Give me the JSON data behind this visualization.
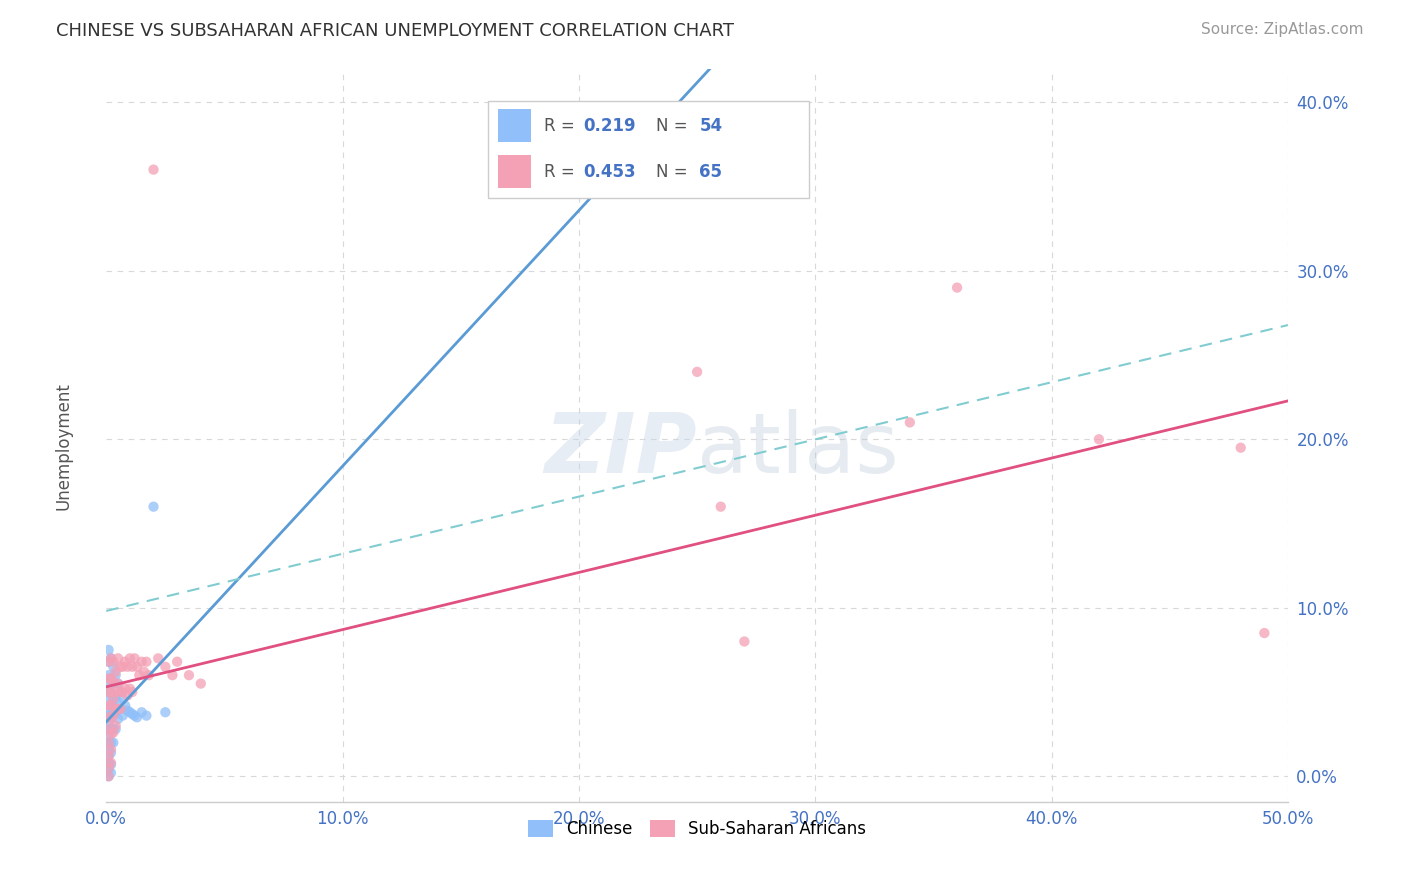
{
  "title": "CHINESE VS SUBSAHARAN AFRICAN UNEMPLOYMENT CORRELATION CHART",
  "source": "Source: ZipAtlas.com",
  "ylabel": "Unemployment",
  "xlim": [
    0.0,
    0.5
  ],
  "ylim": [
    -0.015,
    0.42
  ],
  "xticks": [
    0.0,
    0.1,
    0.2,
    0.3,
    0.4,
    0.5
  ],
  "yticks": [
    0.0,
    0.1,
    0.2,
    0.3,
    0.4
  ],
  "chinese_color": "#90bff9",
  "subsaharan_color": "#f4a0b5",
  "trend_chinese_color": "#5b9bd5",
  "trend_ss_solid_color": "#e05080",
  "trend_ss_dash_color": "#80ccd0",
  "chinese_R": 0.219,
  "chinese_N": 54,
  "subsaharan_R": 0.453,
  "subsaharan_N": 65,
  "background_color": "#ffffff",
  "grid_color": "#d8d8d8",
  "chinese_data": [
    [
      0.001,
      0.075
    ],
    [
      0.001,
      0.068
    ],
    [
      0.001,
      0.06
    ],
    [
      0.001,
      0.055
    ],
    [
      0.001,
      0.05
    ],
    [
      0.001,
      0.045
    ],
    [
      0.001,
      0.04
    ],
    [
      0.001,
      0.036
    ],
    [
      0.001,
      0.032
    ],
    [
      0.001,
      0.028
    ],
    [
      0.001,
      0.024
    ],
    [
      0.001,
      0.02
    ],
    [
      0.001,
      0.016
    ],
    [
      0.001,
      0.012
    ],
    [
      0.001,
      0.008
    ],
    [
      0.001,
      0.004
    ],
    [
      0.001,
      0.0
    ],
    [
      0.002,
      0.07
    ],
    [
      0.002,
      0.058
    ],
    [
      0.002,
      0.05
    ],
    [
      0.002,
      0.042
    ],
    [
      0.002,
      0.035
    ],
    [
      0.002,
      0.028
    ],
    [
      0.002,
      0.02
    ],
    [
      0.002,
      0.014
    ],
    [
      0.002,
      0.007
    ],
    [
      0.002,
      0.002
    ],
    [
      0.003,
      0.065
    ],
    [
      0.003,
      0.055
    ],
    [
      0.003,
      0.045
    ],
    [
      0.003,
      0.036
    ],
    [
      0.003,
      0.028
    ],
    [
      0.003,
      0.02
    ],
    [
      0.004,
      0.06
    ],
    [
      0.004,
      0.048
    ],
    [
      0.004,
      0.038
    ],
    [
      0.004,
      0.028
    ],
    [
      0.005,
      0.055
    ],
    [
      0.005,
      0.044
    ],
    [
      0.005,
      0.034
    ],
    [
      0.006,
      0.05
    ],
    [
      0.006,
      0.04
    ],
    [
      0.007,
      0.046
    ],
    [
      0.007,
      0.036
    ],
    [
      0.008,
      0.042
    ],
    [
      0.009,
      0.039
    ],
    [
      0.01,
      0.038
    ],
    [
      0.011,
      0.037
    ],
    [
      0.012,
      0.036
    ],
    [
      0.013,
      0.035
    ],
    [
      0.015,
      0.038
    ],
    [
      0.017,
      0.036
    ],
    [
      0.02,
      0.16
    ],
    [
      0.025,
      0.038
    ]
  ],
  "subsaharan_data": [
    [
      0.001,
      0.068
    ],
    [
      0.001,
      0.058
    ],
    [
      0.001,
      0.05
    ],
    [
      0.001,
      0.042
    ],
    [
      0.001,
      0.035
    ],
    [
      0.001,
      0.028
    ],
    [
      0.001,
      0.02
    ],
    [
      0.001,
      0.012
    ],
    [
      0.001,
      0.005
    ],
    [
      0.001,
      0.0
    ],
    [
      0.002,
      0.07
    ],
    [
      0.002,
      0.058
    ],
    [
      0.002,
      0.05
    ],
    [
      0.002,
      0.042
    ],
    [
      0.002,
      0.034
    ],
    [
      0.002,
      0.025
    ],
    [
      0.002,
      0.016
    ],
    [
      0.002,
      0.008
    ],
    [
      0.003,
      0.068
    ],
    [
      0.003,
      0.056
    ],
    [
      0.003,
      0.046
    ],
    [
      0.003,
      0.036
    ],
    [
      0.003,
      0.026
    ],
    [
      0.004,
      0.062
    ],
    [
      0.004,
      0.05
    ],
    [
      0.004,
      0.04
    ],
    [
      0.004,
      0.03
    ],
    [
      0.005,
      0.07
    ],
    [
      0.005,
      0.055
    ],
    [
      0.005,
      0.04
    ],
    [
      0.006,
      0.065
    ],
    [
      0.006,
      0.05
    ],
    [
      0.006,
      0.04
    ],
    [
      0.007,
      0.065
    ],
    [
      0.007,
      0.05
    ],
    [
      0.008,
      0.068
    ],
    [
      0.008,
      0.052
    ],
    [
      0.009,
      0.065
    ],
    [
      0.009,
      0.048
    ],
    [
      0.01,
      0.07
    ],
    [
      0.01,
      0.052
    ],
    [
      0.011,
      0.065
    ],
    [
      0.011,
      0.05
    ],
    [
      0.012,
      0.07
    ],
    [
      0.013,
      0.065
    ],
    [
      0.014,
      0.06
    ],
    [
      0.015,
      0.068
    ],
    [
      0.016,
      0.062
    ],
    [
      0.017,
      0.068
    ],
    [
      0.018,
      0.06
    ],
    [
      0.02,
      0.36
    ],
    [
      0.022,
      0.07
    ],
    [
      0.025,
      0.065
    ],
    [
      0.028,
      0.06
    ],
    [
      0.03,
      0.068
    ],
    [
      0.035,
      0.06
    ],
    [
      0.04,
      0.055
    ],
    [
      0.25,
      0.24
    ],
    [
      0.26,
      0.16
    ],
    [
      0.27,
      0.08
    ],
    [
      0.34,
      0.21
    ],
    [
      0.36,
      0.29
    ],
    [
      0.42,
      0.2
    ],
    [
      0.48,
      0.195
    ],
    [
      0.49,
      0.085
    ]
  ]
}
